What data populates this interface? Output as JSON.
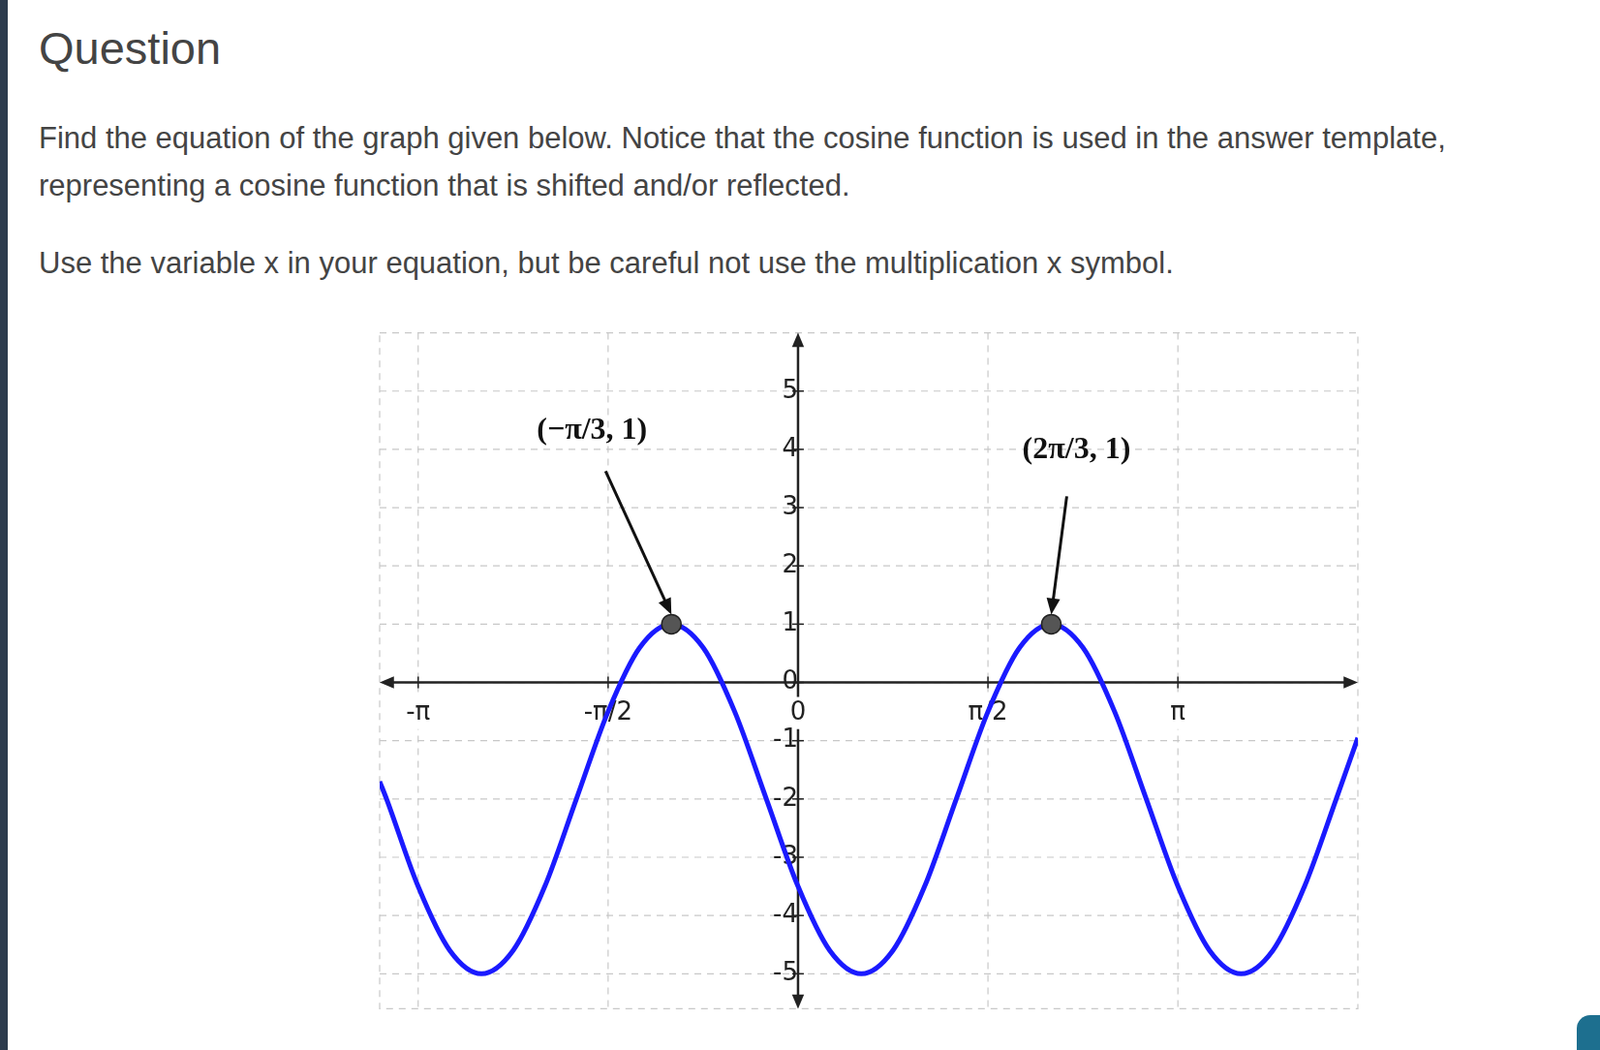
{
  "page": {
    "heading": "Question",
    "paragraphs": [
      "Find the equation of the graph given below. Notice that the cosine function is used in the answer template, representing a cosine function that is shifted and/or reflected.",
      "Use the variable x in your equation, but be careful not use the multiplication  x symbol."
    ]
  },
  "chart_data": {
    "type": "line",
    "x": [
      -3.46,
      -3.403,
      -3.142,
      -2.88,
      -2.618,
      -2.356,
      -2.094,
      -1.833,
      -1.571,
      -1.309,
      -1.047,
      -0.785,
      -0.524,
      -0.262,
      0,
      0.262,
      0.524,
      0.785,
      1.047,
      1.309,
      1.571,
      1.833,
      2.094,
      2.356,
      2.618,
      2.88,
      3.142,
      3.403,
      3.665,
      3.927,
      4.189,
      4.451,
      4.63
    ],
    "values": [
      -1.7,
      -2,
      -3.5,
      -4.6,
      -5,
      -4.6,
      -3.5,
      -2,
      -0.5,
      0.6,
      1,
      0.6,
      -0.5,
      -2,
      -3.5,
      -4.6,
      -5,
      -4.6,
      -3.5,
      -2,
      -0.5,
      0.6,
      1,
      0.6,
      -0.5,
      -2,
      -3.5,
      -4.6,
      -5,
      -4.6,
      -3.5,
      -2,
      -0.95
    ],
    "color": "#1a1aff",
    "xlim": [
      -3.46,
      4.63
    ],
    "ylim": [
      -5.6,
      6
    ],
    "xticks": [
      {
        "value": -3.1416,
        "label": "-π"
      },
      {
        "value": -1.5708,
        "label": "-π/2"
      },
      0,
      {
        "value": 1.5708,
        "label": "π/2"
      },
      {
        "value": 3.1416,
        "label": "π"
      }
    ],
    "yticks": [
      -5,
      -4,
      -3,
      -2,
      -1,
      0,
      1,
      2,
      3,
      4,
      5
    ],
    "grid": true,
    "annotations": [
      {
        "text": "(−π/3, 1)",
        "x": -1.0472,
        "y": 1
      },
      {
        "text": "(2π/3, 1)",
        "x": 2.0944,
        "y": 1
      }
    ]
  }
}
